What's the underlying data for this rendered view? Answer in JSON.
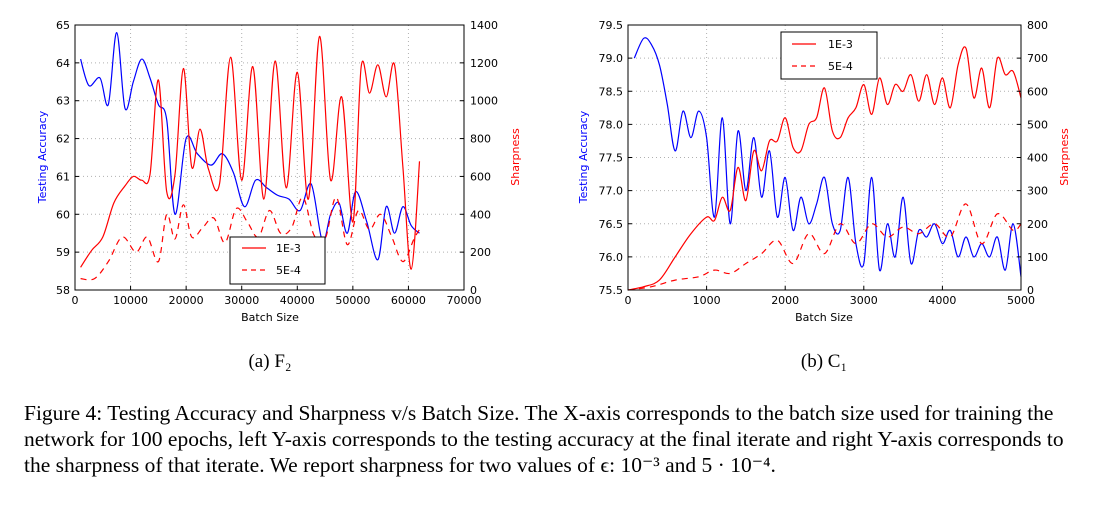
{
  "caption": {
    "label": "Figure 4:",
    "text": "Testing Accuracy and Sharpness v/s Batch Size. The X-axis corresponds to the batch size used for training the network for 100 epochs, left Y-axis corresponds to the testing accuracy at the final iterate and right Y-axis corresponds to the sharpness of that iterate. We report sharpness for two values of ϵ: 10⁻³ and 5 · 10⁻⁴."
  },
  "colors": {
    "accuracy": "#0000ff",
    "sharpness": "#ff0000",
    "grid": "#b0b0b0"
  },
  "chart_data": [
    {
      "type": "line",
      "subcaption": "(a) F₂",
      "xlabel": "Batch Size",
      "ylabel": "Testing Accuracy",
      "y2label": "Sharpness",
      "xlim": [
        0,
        70000
      ],
      "ylim": [
        58,
        65
      ],
      "y2lim": [
        0,
        1400
      ],
      "xticks": [
        "0",
        "10000",
        "20000",
        "30000",
        "40000",
        "50000",
        "60000",
        "70000"
      ],
      "yticks": [
        "58",
        "59",
        "60",
        "61",
        "62",
        "63",
        "64",
        "65"
      ],
      "y2ticks": [
        "0",
        "200",
        "400",
        "600",
        "800",
        "1000",
        "1200",
        "1400"
      ],
      "grid": true,
      "legend_position": "lower-right",
      "series": [
        {
          "axis": "left",
          "color": "#0000ff",
          "style": "solid",
          "x": [
            1000,
            2500,
            4500,
            6000,
            7500,
            9000,
            10500,
            12000,
            13500,
            15000,
            16500,
            18000,
            20000,
            22000,
            24500,
            26500,
            28500,
            30500,
            32500,
            34500,
            36500,
            38500,
            40500,
            42500,
            44500,
            46000,
            47500,
            49000,
            50500,
            52500,
            54500,
            56000,
            57500,
            59000,
            60500,
            62000
          ],
          "y": [
            64.1,
            63.4,
            63.6,
            62.9,
            64.8,
            62.8,
            63.5,
            64.1,
            63.6,
            62.9,
            62.5,
            60.0,
            62.0,
            61.6,
            61.3,
            61.6,
            61.1,
            60.2,
            60.9,
            60.7,
            60.5,
            60.4,
            60.1,
            60.8,
            59.3,
            60.0,
            60.3,
            59.5,
            60.6,
            59.8,
            58.8,
            60.2,
            59.5,
            60.2,
            59.7,
            59.5
          ]
        },
        {
          "axis": "right",
          "name": "1E-3",
          "color": "#ff0000",
          "style": "solid",
          "x": [
            1000,
            3000,
            5000,
            7000,
            9000,
            10500,
            12000,
            13500,
            15000,
            16500,
            18000,
            19500,
            21000,
            22500,
            24000,
            26000,
            28000,
            30000,
            32000,
            34000,
            36000,
            38000,
            40000,
            42000,
            44000,
            46000,
            48000,
            50000,
            51500,
            53000,
            54500,
            56000,
            57500,
            59000,
            60500,
            62000
          ],
          "y": [
            120,
            210,
            280,
            460,
            550,
            600,
            580,
            610,
            1110,
            520,
            610,
            1170,
            650,
            850,
            640,
            560,
            1230,
            580,
            1180,
            480,
            1210,
            540,
            1150,
            480,
            1340,
            580,
            1020,
            360,
            1180,
            1040,
            1190,
            1020,
            1190,
            650,
            110,
            680
          ]
        },
        {
          "axis": "right",
          "name": "5E-4",
          "color": "#ff0000",
          "style": "dashed",
          "x": [
            1000,
            3500,
            6000,
            8500,
            11000,
            13000,
            15000,
            16500,
            18000,
            19500,
            21000,
            23000,
            25000,
            27000,
            29000,
            31000,
            33000,
            35000,
            37000,
            39000,
            41000,
            43000,
            45000,
            47000,
            49000,
            51000,
            53000,
            55000,
            57000,
            59000,
            61000,
            62000
          ],
          "y": [
            60,
            60,
            150,
            280,
            200,
            280,
            150,
            400,
            270,
            450,
            280,
            330,
            380,
            250,
            430,
            360,
            280,
            420,
            300,
            330,
            490,
            290,
            270,
            490,
            240,
            420,
            320,
            400,
            280,
            150,
            270,
            320
          ]
        }
      ]
    },
    {
      "type": "line",
      "subcaption": "(b) C₁",
      "xlabel": "Batch Size",
      "ylabel": "Testing Accuracy",
      "y2label": "Sharpness",
      "xlim": [
        0,
        5000
      ],
      "ylim": [
        75.5,
        79.5
      ],
      "y2lim": [
        0,
        800
      ],
      "xticks": [
        "0",
        "1000",
        "2000",
        "3000",
        "4000",
        "5000"
      ],
      "yticks": [
        "75.5",
        "76.0",
        "76.5",
        "77.0",
        "77.5",
        "78.0",
        "78.5",
        "79.0",
        "79.5"
      ],
      "y2ticks": [
        "0",
        "100",
        "200",
        "300",
        "400",
        "500",
        "600",
        "700",
        "800"
      ],
      "grid": true,
      "legend_position": "upper-left",
      "series": [
        {
          "axis": "left",
          "color": "#0000ff",
          "style": "solid",
          "x": [
            80,
            200,
            300,
            400,
            500,
            600,
            700,
            800,
            900,
            1000,
            1100,
            1200,
            1300,
            1400,
            1500,
            1600,
            1700,
            1800,
            1900,
            2000,
            2100,
            2200,
            2300,
            2400,
            2500,
            2600,
            2700,
            2800,
            2900,
            3000,
            3100,
            3200,
            3300,
            3400,
            3500,
            3600,
            3700,
            3800,
            3900,
            4000,
            4100,
            4200,
            4300,
            4400,
            4500,
            4600,
            4700,
            4800,
            4900,
            5000
          ],
          "y": [
            79.0,
            79.3,
            79.2,
            78.9,
            78.3,
            77.6,
            78.2,
            77.8,
            78.2,
            77.8,
            76.6,
            78.1,
            76.5,
            77.9,
            77.0,
            77.8,
            76.9,
            77.6,
            76.6,
            77.2,
            76.4,
            76.9,
            76.5,
            76.8,
            77.2,
            76.5,
            76.4,
            77.2,
            76.2,
            75.9,
            77.2,
            75.8,
            76.5,
            76.0,
            76.9,
            75.9,
            76.4,
            76.3,
            76.5,
            76.2,
            76.4,
            76.0,
            76.3,
            76.0,
            76.2,
            76.0,
            76.3,
            75.8,
            76.5,
            75.7
          ]
        },
        {
          "axis": "right",
          "name": "1E-3",
          "color": "#ff0000",
          "style": "solid",
          "x": [
            0,
            200,
            400,
            600,
            800,
            1000,
            1100,
            1200,
            1300,
            1400,
            1500,
            1600,
            1700,
            1800,
            1900,
            2000,
            2100,
            2200,
            2300,
            2400,
            2500,
            2600,
            2700,
            2800,
            2900,
            3000,
            3100,
            3200,
            3300,
            3400,
            3500,
            3600,
            3700,
            3800,
            3900,
            4000,
            4100,
            4200,
            4300,
            4400,
            4500,
            4600,
            4700,
            4800,
            4900,
            5000
          ],
          "y": [
            0,
            10,
            30,
            100,
            170,
            220,
            210,
            280,
            240,
            370,
            270,
            420,
            360,
            450,
            450,
            520,
            430,
            420,
            500,
            520,
            610,
            480,
            460,
            520,
            550,
            620,
            530,
            640,
            560,
            620,
            600,
            650,
            570,
            650,
            560,
            640,
            550,
            680,
            730,
            580,
            670,
            550,
            700,
            650,
            660,
            580
          ]
        },
        {
          "axis": "right",
          "name": "5E-4",
          "color": "#ff0000",
          "style": "dashed",
          "x": [
            0,
            300,
            600,
            900,
            1100,
            1300,
            1500,
            1700,
            1900,
            2100,
            2300,
            2500,
            2700,
            2900,
            3100,
            3300,
            3500,
            3700,
            3900,
            4100,
            4300,
            4500,
            4700,
            4900,
            5000
          ],
          "y": [
            0,
            10,
            30,
            40,
            60,
            50,
            80,
            110,
            150,
            80,
            170,
            110,
            200,
            140,
            200,
            160,
            190,
            170,
            200,
            160,
            260,
            140,
            230,
            180,
            200
          ]
        }
      ]
    }
  ]
}
